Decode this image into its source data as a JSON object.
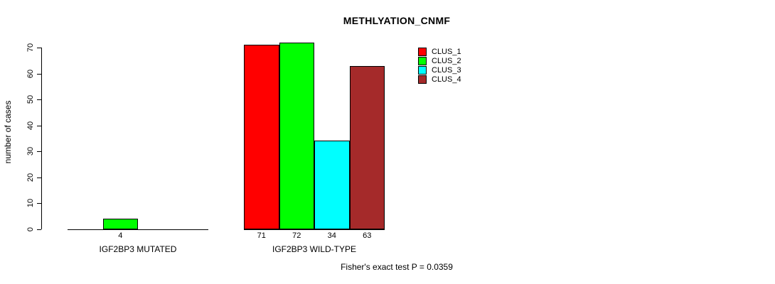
{
  "chart_data": {
    "type": "bar",
    "title": "METHLYATION_CNMF",
    "ylabel": "number of cases",
    "xlabel": "",
    "ylim": [
      0,
      70
    ],
    "yticks": [
      0,
      10,
      20,
      30,
      40,
      50,
      60,
      70
    ],
    "grid": false,
    "legend_position": "top-right",
    "categories": [
      "IGF2BP3 MUTATED",
      "IGF2BP3 WILD-TYPE"
    ],
    "series": [
      {
        "name": "CLUS_1",
        "color": "#ff0000",
        "values": [
          0,
          71
        ]
      },
      {
        "name": "CLUS_2",
        "color": "#00ff00",
        "values": [
          4,
          72
        ]
      },
      {
        "name": "CLUS_3",
        "color": "#00ffff",
        "values": [
          0,
          34
        ]
      },
      {
        "name": "CLUS_4",
        "color": "#a52a2a",
        "values": [
          0,
          63
        ]
      }
    ],
    "value_labels": [
      [
        "",
        "4",
        "",
        ""
      ],
      [
        "71",
        "72",
        "34",
        "63"
      ]
    ],
    "annotation": "Fisher's exact test P = 0.0359"
  }
}
